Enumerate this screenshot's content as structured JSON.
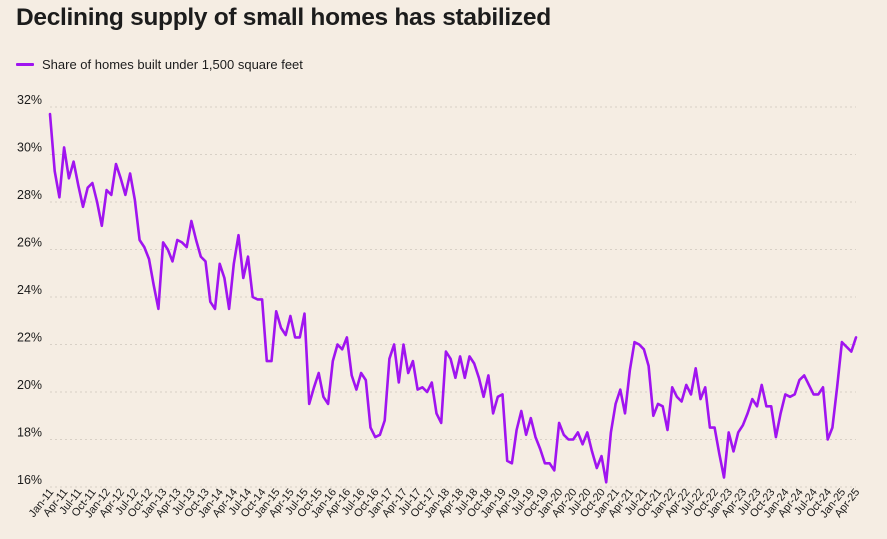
{
  "title": "Declining supply of small homes has stabilized",
  "colors": {
    "background": "#f5ede3",
    "line": "#a014f0",
    "grid": "#d8d0c6"
  },
  "chart_data": {
    "type": "line",
    "title": "Declining supply of small homes has stabilized",
    "xlabel": "",
    "ylabel": "",
    "ylim": [
      16,
      32
    ],
    "y_ticks": [
      "16%",
      "18%",
      "20%",
      "22%",
      "24%",
      "26%",
      "28%",
      "30%",
      "32%"
    ],
    "y_tick_values": [
      16,
      18,
      20,
      22,
      24,
      26,
      28,
      30,
      32
    ],
    "x_tick_labels": [
      "Jan-11",
      "Apr-11",
      "Jul-11",
      "Oct-11",
      "Jan-12",
      "Apr-12",
      "Jul-12",
      "Oct-12",
      "Jan-13",
      "Apr-13",
      "Jul-13",
      "Oct-13",
      "Jan-14",
      "Apr-14",
      "Jul-14",
      "Oct-14",
      "Jan-15",
      "Apr-15",
      "Jul-15",
      "Oct-15",
      "Jan-16",
      "Apr-16",
      "Jul-16",
      "Oct-16",
      "Jan-17",
      "Apr-17",
      "Jul-17",
      "Oct-17",
      "Jan-18",
      "Apr-18",
      "Jul-18",
      "Oct-18",
      "Jan-19",
      "Apr-19",
      "Jul-19",
      "Oct-19",
      "Jan-20",
      "Apr-20",
      "Jul-20",
      "Oct-20",
      "Jan-21",
      "Apr-21",
      "Jul-21",
      "Oct-21",
      "Jan-22",
      "Apr-22",
      "Jul-22",
      "Oct-22",
      "Jan-23",
      "Apr-23",
      "Jul-23",
      "Oct-23",
      "Jan-24",
      "Apr-24",
      "Jul-24",
      "Oct-24",
      "Jan-25",
      "Apr-25"
    ],
    "grid": true,
    "legend_position": "top-left",
    "series": [
      {
        "name": "Share of homes built under 1,500 square feet",
        "values": [
          31.7,
          29.3,
          28.2,
          30.3,
          29.0,
          29.7,
          28.7,
          27.8,
          28.6,
          28.8,
          28.0,
          27.0,
          28.5,
          28.3,
          29.6,
          29.0,
          28.3,
          29.2,
          28.1,
          26.4,
          26.1,
          25.6,
          24.5,
          23.5,
          26.3,
          26.0,
          25.5,
          26.4,
          26.3,
          26.1,
          27.2,
          26.4,
          25.7,
          25.5,
          23.8,
          23.5,
          25.4,
          24.8,
          23.5,
          25.4,
          26.6,
          24.8,
          25.7,
          24.0,
          23.9,
          23.9,
          21.3,
          21.3,
          23.4,
          22.7,
          22.4,
          23.2,
          22.3,
          22.3,
          23.3,
          19.5,
          20.2,
          20.8,
          19.8,
          19.5,
          21.3,
          22.0,
          21.8,
          22.3,
          20.7,
          20.1,
          20.8,
          20.5,
          18.5,
          18.1,
          18.2,
          18.8,
          21.4,
          22.0,
          20.4,
          22.0,
          20.8,
          21.3,
          20.1,
          20.2,
          20.0,
          20.4,
          19.1,
          18.7,
          21.7,
          21.4,
          20.6,
          21.5,
          20.6,
          21.5,
          21.2,
          20.6,
          19.8,
          20.7,
          19.1,
          19.8,
          19.9,
          17.1,
          17.0,
          18.4,
          19.2,
          18.2,
          18.9,
          18.1,
          17.6,
          17.0,
          17.0,
          16.7,
          18.7,
          18.2,
          18.0,
          18.0,
          18.3,
          17.8,
          18.3,
          17.5,
          16.8,
          17.3,
          16.2,
          18.3,
          19.5,
          20.1,
          19.1,
          20.9,
          22.1,
          22.0,
          21.8,
          21.1,
          19.0,
          19.5,
          19.4,
          18.4,
          20.2,
          19.8,
          19.6,
          20.3,
          19.9,
          21.0,
          19.7,
          20.2,
          18.5,
          18.5,
          17.4,
          16.4,
          18.3,
          17.5,
          18.3,
          18.6,
          19.1,
          19.7,
          19.4,
          20.3,
          19.4,
          19.4,
          18.1,
          19.1,
          19.9,
          19.8,
          19.9,
          20.5,
          20.7,
          20.3,
          19.9,
          19.9,
          20.2,
          18.0,
          18.5,
          20.2,
          22.1,
          21.9,
          21.7,
          22.3
        ]
      }
    ]
  }
}
